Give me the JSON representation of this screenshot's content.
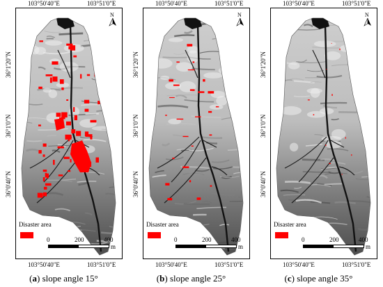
{
  "panels": [
    {
      "letter": "a",
      "caption_text": " slope angle 15°",
      "lon_top_left": "103°50'40\"E",
      "lon_top_right": "103°51'0\"E",
      "lon_bottom_left": "103°50'40\"E",
      "lon_bottom_right": "103°51'0\"E",
      "lat_ticks": [
        "36°1'20\"N",
        "36°1'0\"N",
        "36°0'40\"N"
      ],
      "legend_title": "Disaster area",
      "scale_labels": [
        "0",
        "200",
        "400"
      ],
      "scale_unit": "m",
      "north": "N",
      "disaster_density": "high"
    },
    {
      "letter": "b",
      "caption_text": " slope angle 25°",
      "lon_top_left": "103°50'40\"E",
      "lon_top_right": "103°51'0\"E",
      "lon_bottom_left": "103°50'40\"E",
      "lon_bottom_right": "103°51'0\"E",
      "lat_ticks": [
        "36°1'20\"N",
        "36°1'0\"N",
        "36°0'40\"N"
      ],
      "legend_title": "Disaster area",
      "scale_labels": [
        "0",
        "200",
        "400"
      ],
      "scale_unit": "m",
      "north": "N",
      "disaster_density": "medium"
    },
    {
      "letter": "c",
      "caption_text": " slope angle 35°",
      "lon_top_left": "103°50'40\"E",
      "lon_top_right": "103°51'0\"E",
      "lon_bottom_left": "103°50'40\"E",
      "lon_bottom_right": "103°51'0\"E",
      "lat_ticks": [
        "36°1'20\"N",
        "36°1'0\"N",
        "36°0'40\"N"
      ],
      "legend_title": "Disaster area",
      "scale_labels": [
        "0",
        "200",
        "400"
      ],
      "scale_unit": "m",
      "north": "N",
      "disaster_density": "low"
    }
  ],
  "colors": {
    "disaster": "#ff0000",
    "terrain_light": "#d9d9d9",
    "terrain_dark": "#3a3a3a",
    "channel": "#111111"
  }
}
